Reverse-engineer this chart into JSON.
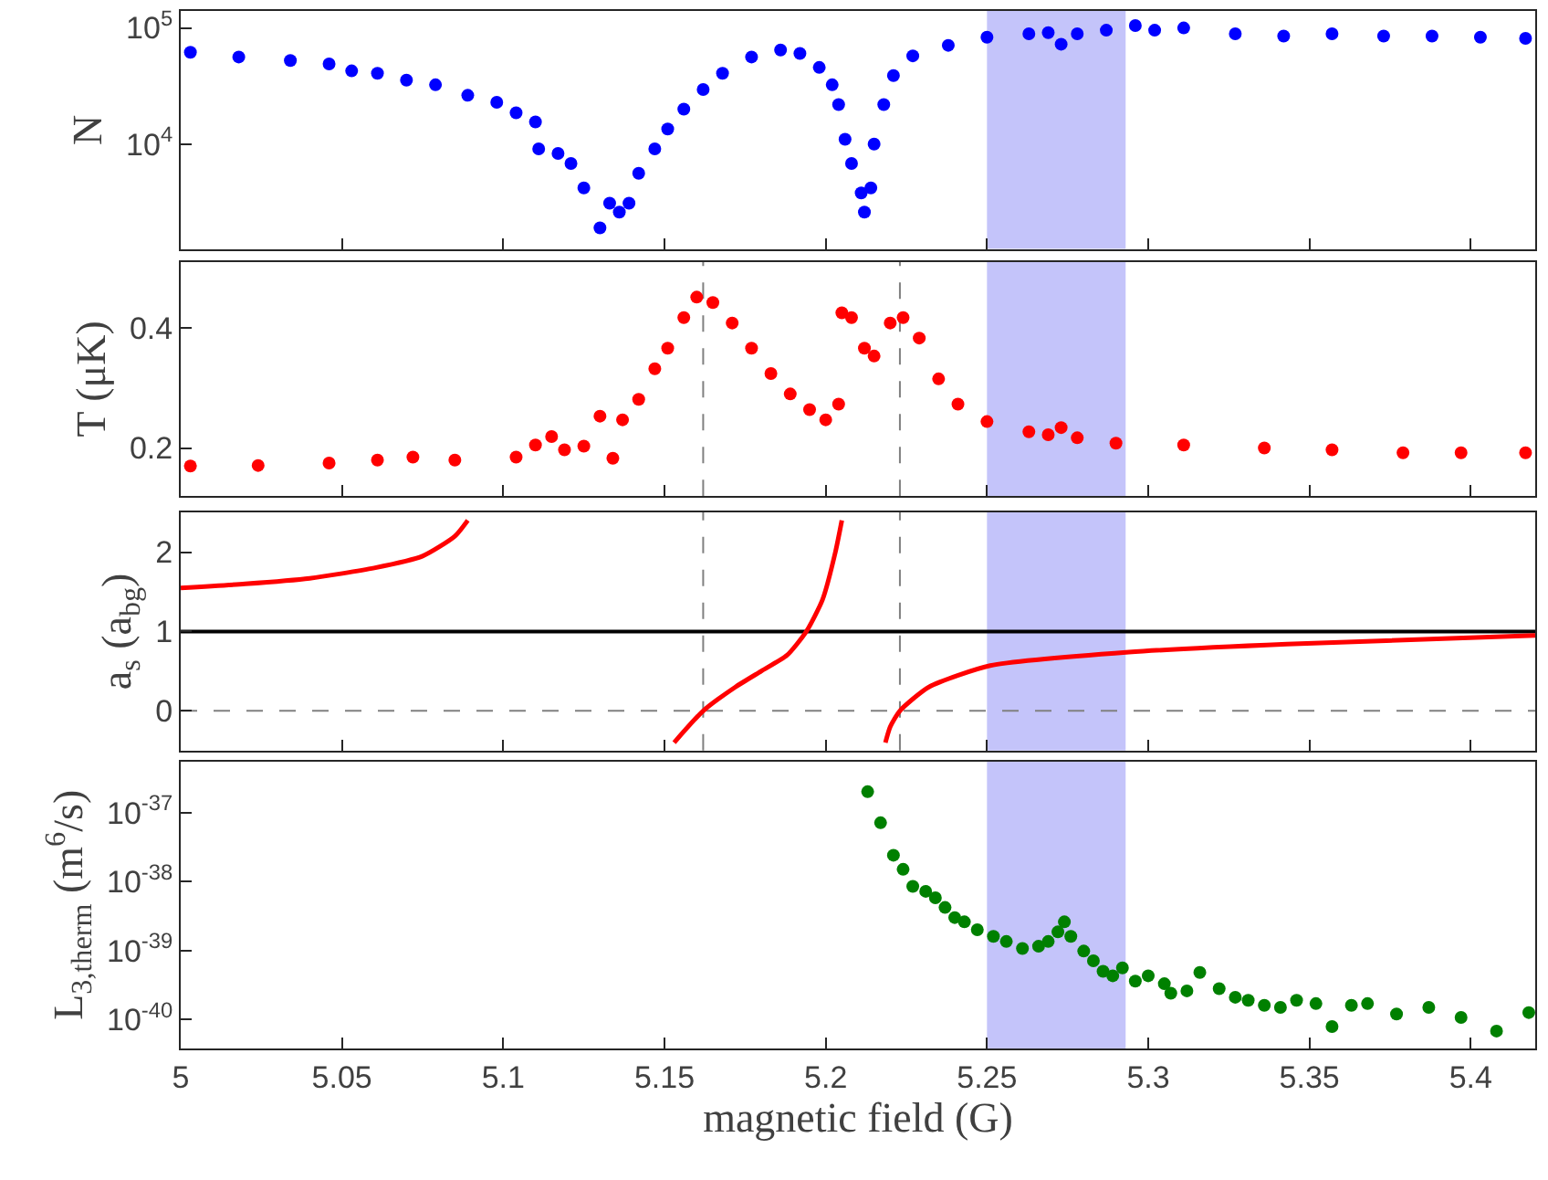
{
  "chart_data": [
    {
      "type": "scatter",
      "ylabel": "N",
      "log": "y",
      "marker": "circle",
      "tick_labels": "y",
      "xlim": [
        5,
        5.42
      ],
      "xticks": [
        5,
        5.05,
        5.1,
        5.15,
        5.2,
        5.25,
        5.3,
        5.35,
        5.4
      ],
      "ylim": [
        1250,
        140000
      ],
      "yticks": [
        {
          "value": 10000,
          "label": "10$^{4}$"
        },
        {
          "value": 100000,
          "label": "10$^{5}$"
        }
      ],
      "bands": [
        {
          "axis": "x",
          "from": 5.25,
          "to": 5.293,
          "color": "#c4c4fa"
        }
      ],
      "series": [
        {
          "color": "#0000ff",
          "x": [
            5.003,
            5.018,
            5.034,
            5.046,
            5.053,
            5.061,
            5.07,
            5.079,
            5.089,
            5.098,
            5.104,
            5.11,
            5.111,
            5.117,
            5.121,
            5.125,
            5.13,
            5.133,
            5.136,
            5.139,
            5.142,
            5.147,
            5.151,
            5.156,
            5.162,
            5.168,
            5.177,
            5.186,
            5.192,
            5.198,
            5.202,
            5.204,
            5.206,
            5.208,
            5.211,
            5.212,
            5.214,
            5.215,
            5.218,
            5.221,
            5.227,
            5.238,
            5.25,
            5.263,
            5.269,
            5.273,
            5.278,
            5.287,
            5.296,
            5.302,
            5.311,
            5.327,
            5.342,
            5.357,
            5.373,
            5.388,
            5.403,
            5.417
          ],
          "values": [
            61700,
            56200,
            52500,
            49000,
            42700,
            40700,
            35500,
            32400,
            26300,
            22900,
            18600,
            15500,
            9100,
            8300,
            6800,
            4200,
            1900,
            3100,
            2600,
            3100,
            5600,
            9100,
            13500,
            20000,
            29500,
            40700,
            56200,
            64600,
            60300,
            45700,
            32400,
            21900,
            11000,
            6800,
            3800,
            2600,
            4200,
            10000,
            21900,
            38900,
            57500,
            70800,
            83200,
            89100,
            91200,
            72400,
            89100,
            95500,
            104700,
            95500,
            100000,
            89100,
            85100,
            89100,
            85100,
            85100,
            83200,
            81300
          ]
        }
      ]
    },
    {
      "type": "scatter",
      "ylabel": "T (μK)",
      "marker": "circle",
      "tick_labels": "y",
      "xlim": [
        5,
        5.42
      ],
      "xticks": [
        5,
        5.05,
        5.1,
        5.15,
        5.2,
        5.25,
        5.3,
        5.35,
        5.4
      ],
      "ylim": [
        0.12,
        0.51
      ],
      "yticks": [
        0.2,
        0.4
      ],
      "bands": [
        {
          "axis": "x",
          "from": 5.25,
          "to": 5.293,
          "color": "#c4c4fa"
        }
      ],
      "ref_lines": [
        {
          "axis": "x",
          "value": 5.162,
          "color": "#808080",
          "line_style": "dashed"
        },
        {
          "axis": "x",
          "value": 5.223,
          "color": "#808080",
          "line_style": "dashed"
        }
      ],
      "series": [
        {
          "color": "#ff0000",
          "x": [
            5.003,
            5.024,
            5.046,
            5.061,
            5.072,
            5.085,
            5.104,
            5.11,
            5.115,
            5.119,
            5.125,
            5.13,
            5.134,
            5.137,
            5.142,
            5.147,
            5.151,
            5.156,
            5.16,
            5.165,
            5.171,
            5.177,
            5.183,
            5.189,
            5.195,
            5.2,
            5.204,
            5.205,
            5.208,
            5.212,
            5.215,
            5.22,
            5.224,
            5.229,
            5.235,
            5.241,
            5.25,
            5.263,
            5.269,
            5.273,
            5.278,
            5.29,
            5.311,
            5.336,
            5.357,
            5.379,
            5.397,
            5.417
          ],
          "values": [
            0.17,
            0.171,
            0.175,
            0.18,
            0.185,
            0.18,
            0.185,
            0.205,
            0.219,
            0.197,
            0.203,
            0.253,
            0.183,
            0.247,
            0.281,
            0.332,
            0.366,
            0.417,
            0.451,
            0.442,
            0.408,
            0.366,
            0.324,
            0.29,
            0.264,
            0.247,
            0.273,
            0.425,
            0.417,
            0.366,
            0.353,
            0.408,
            0.417,
            0.383,
            0.315,
            0.273,
            0.244,
            0.227,
            0.222,
            0.234,
            0.217,
            0.208,
            0.205,
            0.2,
            0.197,
            0.192,
            0.192,
            0.192
          ]
        }
      ]
    },
    {
      "type": "line",
      "ylabel": "a$_{s}$ (a$_{bg}$)",
      "tick_labels": "y",
      "xlim": [
        5,
        5.42
      ],
      "xticks": [
        5,
        5.05,
        5.1,
        5.15,
        5.2,
        5.25,
        5.3,
        5.35,
        5.4
      ],
      "ylim": [
        -0.5,
        2.5
      ],
      "yticks": [
        0,
        1,
        2
      ],
      "bands": [
        {
          "axis": "x",
          "from": 5.25,
          "to": 5.293,
          "color": "#c4c4fa"
        }
      ],
      "ref_lines": [
        {
          "axis": "x",
          "value": 5.162,
          "color": "#808080",
          "line_style": "dashed"
        },
        {
          "axis": "x",
          "value": 5.223,
          "color": "#808080",
          "line_style": "dashed"
        },
        {
          "axis": "y",
          "value": 0,
          "color": "#808080",
          "line_style": "dashed"
        },
        {
          "axis": "y",
          "value": 1,
          "color": "#000000",
          "line_style": "solid"
        }
      ],
      "series": [
        {
          "color": "#ff0000",
          "x": [
            5.0,
            5.02,
            5.04,
            5.06,
            5.075,
            5.085,
            5.089,
            5.12,
            5.153,
            5.162,
            5.172,
            5.18,
            5.188,
            5.194,
            5.199,
            5.203,
            5.205,
            5.21,
            5.2185,
            5.22,
            5.223,
            5.232,
            5.251,
            5.294,
            5.343,
            5.42
          ],
          "values": [
            1.55,
            1.6,
            1.67,
            1.8,
            1.95,
            2.2,
            2.4,
            null,
            -0.4,
            0,
            0.3,
            0.5,
            0.7,
            1.0,
            1.4,
            2.0,
            2.4,
            null,
            -0.4,
            -0.2,
            0,
            0.3,
            0.57,
            0.74,
            0.84,
            0.95
          ]
        }
      ]
    },
    {
      "type": "scatter",
      "xlabel": "magnetic field (G)",
      "ylabel": "L$_{3,therm}$ (m$^{6}$/s)",
      "log": "y",
      "marker": "circle",
      "xlim": [
        5,
        5.42
      ],
      "xticks": [
        5,
        5.05,
        5.1,
        5.15,
        5.2,
        5.25,
        5.3,
        5.35,
        5.4
      ],
      "ylim": [
        3.8e-41,
        5.5e-37
      ],
      "yticks": [
        {
          "value": 1e-40,
          "label": "10$^{-40}$"
        },
        {
          "value": 1e-39,
          "label": "10$^{-39}$"
        },
        {
          "value": 1e-38,
          "label": "10$^{-38}$"
        },
        {
          "value": 1e-37,
          "label": "10$^{-37}$"
        }
      ],
      "bands": [
        {
          "axis": "x",
          "from": 5.25,
          "to": 5.293,
          "color": "#c4c4fa"
        }
      ],
      "series": [
        {
          "color": "#008000",
          "x": [
            5.213,
            5.217,
            5.221,
            5.224,
            5.227,
            5.231,
            5.234,
            5.237,
            5.24,
            5.243,
            5.247,
            5.252,
            5.256,
            5.261,
            5.266,
            5.269,
            5.272,
            5.274,
            5.276,
            5.28,
            5.283,
            5.286,
            5.289,
            5.292,
            5.296,
            5.3,
            5.305,
            5.307,
            5.312,
            5.316,
            5.322,
            5.327,
            5.331,
            5.336,
            5.341,
            5.346,
            5.352,
            5.357,
            5.363,
            5.368,
            5.377,
            5.387,
            5.397,
            5.408,
            5.418
          ],
          "values": [
            2e-37,
            7.1e-38,
            2.4e-38,
            1.5e-38,
            8.5e-39,
            7.2e-39,
            5.8e-39,
            4.2e-39,
            3e-39,
            2.6e-39,
            2e-39,
            1.6e-39,
            1.35e-39,
            1.07e-39,
            1.15e-39,
            1.35e-39,
            1.86e-39,
            2.6e-39,
            1.6e-39,
            9.8e-40,
            7.1e-40,
            5e-40,
            4.3e-40,
            5.6e-40,
            3.6e-40,
            4.3e-40,
            3.3e-40,
            2.4e-40,
            2.6e-40,
            4.8e-40,
            2.8e-40,
            2.1e-40,
            1.9e-40,
            1.6e-40,
            1.5e-40,
            1.9e-40,
            1.7e-40,
            7.9e-41,
            1.6e-40,
            1.7e-40,
            1.2e-40,
            1.5e-40,
            1.07e-40,
            6.8e-41,
            1.26e-40
          ]
        }
      ]
    }
  ]
}
